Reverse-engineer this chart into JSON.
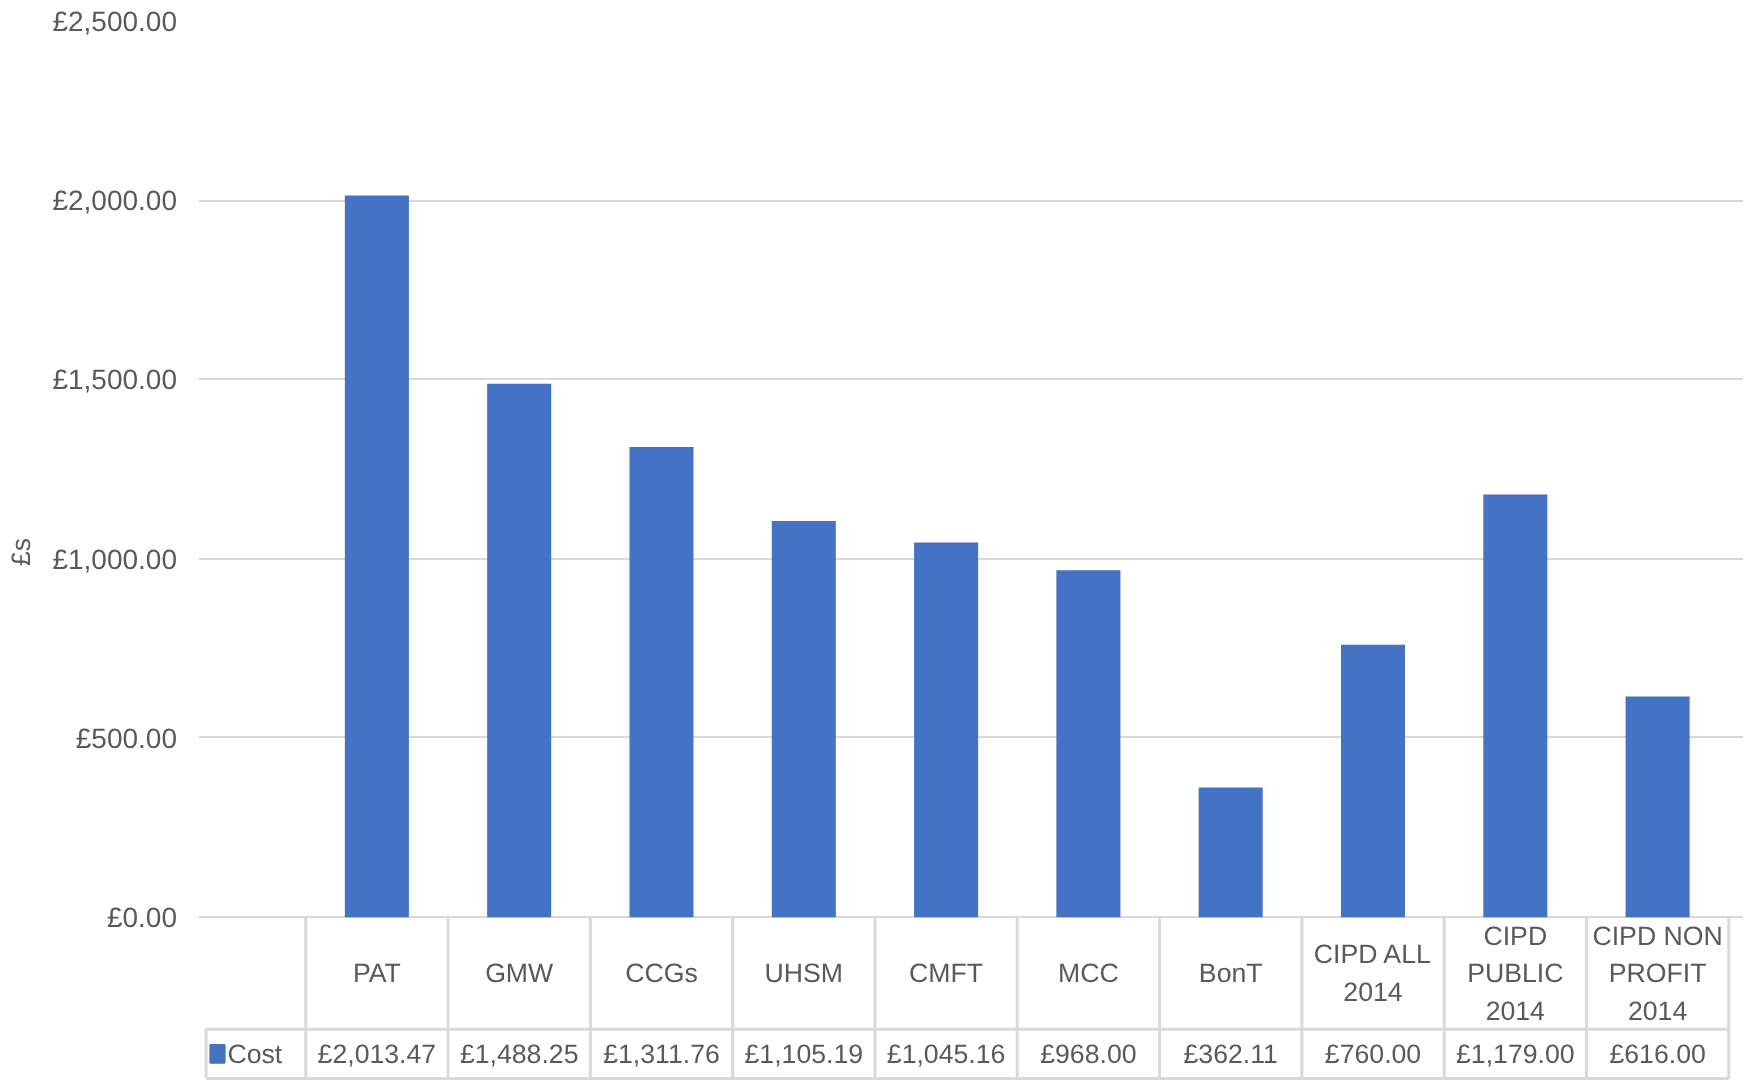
{
  "chart_data": {
    "type": "bar",
    "ylabel": "£s",
    "categories": [
      "PAT",
      "GMW",
      "CCGs",
      "UHSM",
      "CMFT",
      "MCC",
      "BonT",
      "CIPD ALL 2014",
      "CIPD PUBLIC 2014",
      "CIPD NON PROFIT 2014"
    ],
    "series": [
      {
        "name": "Cost",
        "color": "#4472c4",
        "values": [
          2013.47,
          1488.25,
          1311.76,
          1105.19,
          1045.16,
          968.0,
          362.11,
          760.0,
          1179.0,
          616.0
        ],
        "value_labels": [
          "£2,013.47",
          "£1,488.25",
          "£1,311.76",
          "£1,105.19",
          "£1,045.16",
          "£968.00",
          "£362.11",
          "£760.00",
          "£1,179.00",
          "£616.00"
        ]
      }
    ],
    "ylim": [
      0,
      2500
    ],
    "yticks": [
      {
        "value": 0,
        "label": "£0.00"
      },
      {
        "value": 500,
        "label": "£500.00"
      },
      {
        "value": 1000,
        "label": "£1,000.00"
      },
      {
        "value": 1500,
        "label": "£1,500.00"
      },
      {
        "value": 2000,
        "label": "£2,000.00"
      },
      {
        "value": 2500,
        "label": "£2,500.00"
      }
    ],
    "grid": "y"
  }
}
